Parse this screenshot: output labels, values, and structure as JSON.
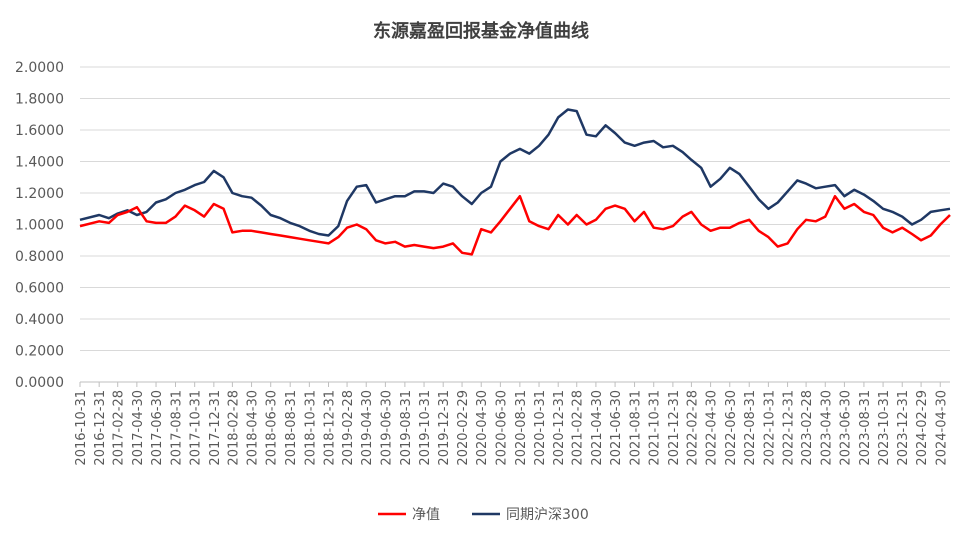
{
  "chart_data": {
    "type": "line",
    "title": "东源嘉盈回报基金净值曲线",
    "xlabel": "",
    "ylabel": "",
    "ylim": [
      0,
      2
    ],
    "y_ticks": [
      "0.0000",
      "0.2000",
      "0.4000",
      "0.6000",
      "0.8000",
      "1.0000",
      "1.2000",
      "1.4000",
      "1.6000",
      "1.8000",
      "2.0000"
    ],
    "grid": "horizontal",
    "legend_position": "bottom",
    "x_tick_labels": [
      "2016-10-31",
      "2016-12-31",
      "2017-02-28",
      "2017-04-30",
      "2017-06-30",
      "2017-08-31",
      "2017-10-31",
      "2017-12-31",
      "2018-02-28",
      "2018-04-30",
      "2018-06-30",
      "2018-08-31",
      "2018-10-31",
      "2018-12-31",
      "2019-02-28",
      "2019-04-30",
      "2019-06-30",
      "2019-08-31",
      "2019-10-31",
      "2019-12-31",
      "2020-02-29",
      "2020-04-30",
      "2020-06-30",
      "2020-08-31",
      "2020-10-31",
      "2020-12-31",
      "2021-02-28",
      "2021-04-30",
      "2021-06-30",
      "2021-08-31",
      "2021-10-31",
      "2021-12-31",
      "2022-02-28",
      "2022-04-30",
      "2022-06-30",
      "2022-08-31",
      "2022-10-31",
      "2022-12-31",
      "2023-02-28",
      "2023-04-30",
      "2023-06-30",
      "2023-08-31",
      "2023-10-31",
      "2023-12-31",
      "2024-02-29",
      "2024-04-30"
    ],
    "x_range": [
      "2016-10-31",
      "2024-05-31"
    ],
    "series": [
      {
        "name": "净值",
        "color": "#ff0000",
        "x": [
          "2016-10-31",
          "2016-12-31",
          "2017-01-31",
          "2017-02-28",
          "2017-03-31",
          "2017-04-30",
          "2017-05-31",
          "2017-06-30",
          "2017-07-31",
          "2017-08-31",
          "2017-09-30",
          "2017-10-31",
          "2017-11-30",
          "2017-12-31",
          "2018-01-31",
          "2018-02-28",
          "2018-03-31",
          "2018-04-30",
          "2018-05-31",
          "2018-06-30",
          "2018-07-31",
          "2018-08-31",
          "2018-09-30",
          "2018-10-31",
          "2018-11-30",
          "2018-12-31",
          "2019-01-31",
          "2019-02-28",
          "2019-03-31",
          "2019-04-30",
          "2019-05-31",
          "2019-06-30",
          "2019-07-31",
          "2019-08-31",
          "2019-09-30",
          "2019-10-31",
          "2019-11-30",
          "2019-12-31",
          "2020-01-31",
          "2020-02-29",
          "2020-03-31",
          "2020-04-30",
          "2020-05-31",
          "2020-06-30",
          "2020-07-31",
          "2020-08-31",
          "2020-09-30",
          "2020-10-31",
          "2020-11-30",
          "2020-12-31",
          "2021-01-31",
          "2021-02-28",
          "2021-03-31",
          "2021-04-30",
          "2021-05-31",
          "2021-06-30",
          "2021-07-31",
          "2021-08-31",
          "2021-09-30",
          "2021-10-31",
          "2021-11-30",
          "2021-12-31",
          "2022-01-31",
          "2022-02-28",
          "2022-03-31",
          "2022-04-30",
          "2022-05-31",
          "2022-06-30",
          "2022-07-31",
          "2022-08-31",
          "2022-09-30",
          "2022-10-31",
          "2022-11-30",
          "2022-12-31",
          "2023-01-31",
          "2023-02-28",
          "2023-03-31",
          "2023-04-30",
          "2023-05-31",
          "2023-06-30",
          "2023-07-31",
          "2023-08-31",
          "2023-09-30",
          "2023-10-31",
          "2023-11-30",
          "2023-12-31",
          "2024-01-31",
          "2024-02-29",
          "2024-03-31",
          "2024-04-30",
          "2024-05-31"
        ],
        "values": [
          0.99,
          1.02,
          1.01,
          1.06,
          1.08,
          1.11,
          1.02,
          1.01,
          1.01,
          1.05,
          1.12,
          1.09,
          1.05,
          1.13,
          1.1,
          0.95,
          0.96,
          0.96,
          0.95,
          0.94,
          0.93,
          0.92,
          0.91,
          0.9,
          0.89,
          0.88,
          0.92,
          0.98,
          1.0,
          0.97,
          0.9,
          0.88,
          0.89,
          0.86,
          0.87,
          0.86,
          0.85,
          0.86,
          0.88,
          0.82,
          0.81,
          0.97,
          0.95,
          1.02,
          1.1,
          1.18,
          1.02,
          0.99,
          0.97,
          1.06,
          1.0,
          1.06,
          1.0,
          1.03,
          1.1,
          1.12,
          1.1,
          1.02,
          1.08,
          0.98,
          0.97,
          0.99,
          1.05,
          1.08,
          1.0,
          0.96,
          0.98,
          0.98,
          1.01,
          1.03,
          0.96,
          0.92,
          0.86,
          0.88,
          0.97,
          1.03,
          1.02,
          1.05,
          1.18,
          1.1,
          1.13,
          1.08,
          1.06,
          0.98,
          0.95,
          0.98,
          0.94,
          0.9,
          0.93,
          1.0,
          1.06
        ]
      },
      {
        "name": "同期沪深300",
        "color": "#1f3864",
        "x": [
          "2016-10-31",
          "2016-12-31",
          "2017-01-31",
          "2017-02-28",
          "2017-03-31",
          "2017-04-30",
          "2017-05-31",
          "2017-06-30",
          "2017-07-31",
          "2017-08-31",
          "2017-09-30",
          "2017-10-31",
          "2017-11-30",
          "2017-12-31",
          "2018-01-31",
          "2018-02-28",
          "2018-03-31",
          "2018-04-30",
          "2018-05-31",
          "2018-06-30",
          "2018-07-31",
          "2018-08-31",
          "2018-09-30",
          "2018-10-31",
          "2018-11-30",
          "2018-12-31",
          "2019-01-31",
          "2019-02-28",
          "2019-03-31",
          "2019-04-30",
          "2019-05-31",
          "2019-06-30",
          "2019-07-31",
          "2019-08-31",
          "2019-09-30",
          "2019-10-31",
          "2019-11-30",
          "2019-12-31",
          "2020-01-31",
          "2020-02-29",
          "2020-03-31",
          "2020-04-30",
          "2020-05-31",
          "2020-06-30",
          "2020-07-31",
          "2020-08-31",
          "2020-09-30",
          "2020-10-31",
          "2020-11-30",
          "2020-12-31",
          "2021-01-31",
          "2021-02-28",
          "2021-03-31",
          "2021-04-30",
          "2021-05-31",
          "2021-06-30",
          "2021-07-31",
          "2021-08-31",
          "2021-09-30",
          "2021-10-31",
          "2021-11-30",
          "2021-12-31",
          "2022-01-31",
          "2022-02-28",
          "2022-03-31",
          "2022-04-30",
          "2022-05-31",
          "2022-06-30",
          "2022-07-31",
          "2022-08-31",
          "2022-09-30",
          "2022-10-31",
          "2022-11-30",
          "2022-12-31",
          "2023-01-31",
          "2023-02-28",
          "2023-03-31",
          "2023-04-30",
          "2023-05-31",
          "2023-06-30",
          "2023-07-31",
          "2023-08-31",
          "2023-09-30",
          "2023-10-31",
          "2023-11-30",
          "2023-12-31",
          "2024-01-31",
          "2024-02-29",
          "2024-03-31",
          "2024-04-30",
          "2024-05-31"
        ],
        "values": [
          1.03,
          1.06,
          1.04,
          1.07,
          1.09,
          1.06,
          1.08,
          1.14,
          1.16,
          1.2,
          1.22,
          1.25,
          1.27,
          1.34,
          1.3,
          1.2,
          1.18,
          1.17,
          1.12,
          1.06,
          1.04,
          1.01,
          0.99,
          0.96,
          0.94,
          0.93,
          0.99,
          1.15,
          1.24,
          1.25,
          1.14,
          1.16,
          1.18,
          1.18,
          1.21,
          1.21,
          1.2,
          1.26,
          1.24,
          1.18,
          1.13,
          1.2,
          1.24,
          1.4,
          1.45,
          1.48,
          1.45,
          1.5,
          1.57,
          1.68,
          1.73,
          1.72,
          1.57,
          1.56,
          1.63,
          1.58,
          1.52,
          1.5,
          1.52,
          1.53,
          1.49,
          1.5,
          1.46,
          1.41,
          1.36,
          1.24,
          1.29,
          1.36,
          1.32,
          1.24,
          1.16,
          1.1,
          1.14,
          1.21,
          1.28,
          1.26,
          1.23,
          1.24,
          1.25,
          1.18,
          1.22,
          1.19,
          1.15,
          1.1,
          1.08,
          1.05,
          1.0,
          1.03,
          1.08,
          1.09,
          1.1
        ]
      }
    ]
  }
}
